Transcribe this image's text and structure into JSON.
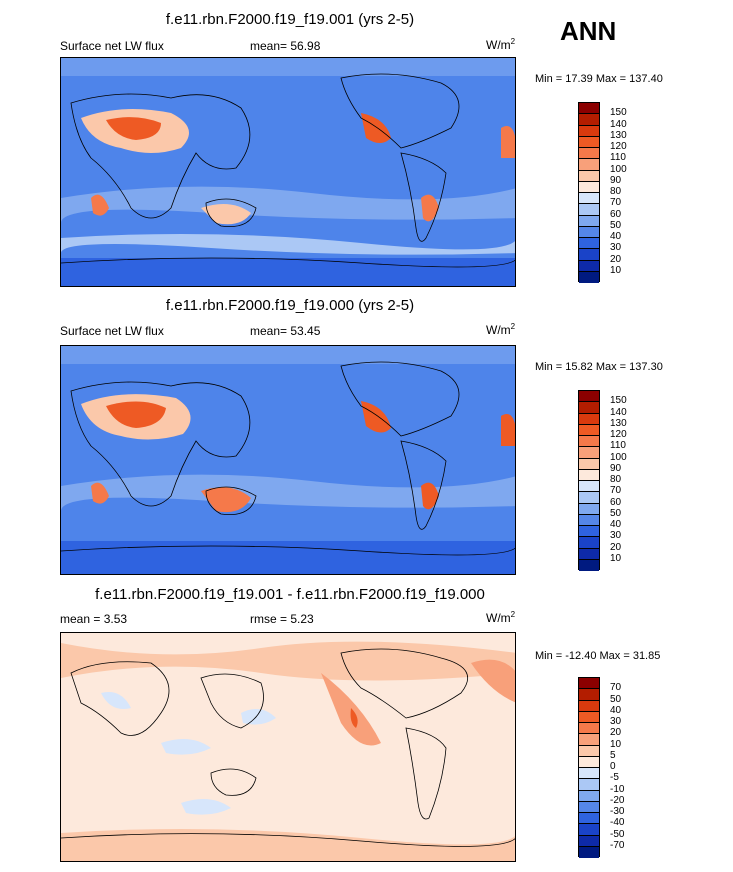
{
  "season": "ANN",
  "panels": [
    {
      "title": "f.e11.rbn.F2000.f19_f19.001 (yrs 2-5)",
      "left_label": "Surface net LW flux",
      "center_label": "mean=  56.98",
      "units": "W/m",
      "units_sup": "2",
      "minmax": "Min =  17.39 Max = 137.40",
      "scale": "abs"
    },
    {
      "title": "f.e11.rbn.F2000.f19_f19.000 (yrs 2-5)",
      "left_label": "Surface net LW flux",
      "center_label": "mean=  53.45",
      "units": "W/m",
      "units_sup": "2",
      "minmax": "Min =  15.82 Max = 137.30",
      "scale": "abs"
    },
    {
      "title": "f.e11.rbn.F2000.f19_f19.001 - f.e11.rbn.F2000.f19_f19.000",
      "left_label": "mean =   3.53",
      "center_label": "rmse =   5.23",
      "units": "W/m",
      "units_sup": "2",
      "minmax": "Min = -12.40 Max =  31.85",
      "scale": "diff"
    }
  ],
  "colorbars": {
    "abs": {
      "labels": [
        "150",
        "140",
        "130",
        "120",
        "110",
        "100",
        "90",
        "80",
        "70",
        "60",
        "50",
        "40",
        "30",
        "20",
        "10"
      ],
      "colors": [
        "#8b0000",
        "#b31d00",
        "#d93a0e",
        "#ee5a24",
        "#f5794a",
        "#f8a07a",
        "#fbc8aa",
        "#fde9dc",
        "#d7e6fb",
        "#abc8f5",
        "#7fa8ef",
        "#5586e8",
        "#2f63e0",
        "#1a43c8",
        "#0e2aa8",
        "#001a80"
      ]
    },
    "diff": {
      "labels": [
        "70",
        "50",
        "40",
        "30",
        "20",
        "10",
        "5",
        "0",
        "-5",
        "-10",
        "-20",
        "-30",
        "-40",
        "-50",
        "-70"
      ],
      "colors": [
        "#8b0000",
        "#b31d00",
        "#d93a0e",
        "#ee5a24",
        "#f5794a",
        "#f8a07a",
        "#fbc8aa",
        "#fde9dc",
        "#d7e6fb",
        "#abc8f5",
        "#7fa8ef",
        "#5586e8",
        "#2f63e0",
        "#1a43c8",
        "#0e2aa8",
        "#001a80"
      ]
    }
  }
}
